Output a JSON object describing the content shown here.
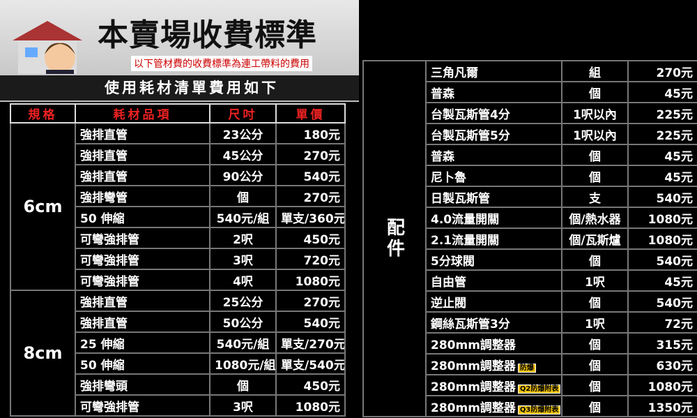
{
  "header": {
    "title": "本賣場收費標準",
    "subtitle": "以下管材費的收費標準為連工帶料的費用",
    "banner": "使用耗材清單費用如下"
  },
  "left": {
    "columns": [
      "規格",
      "耗材品項",
      "尺吋",
      "單價"
    ],
    "groups": [
      {
        "label": "6cm",
        "rows": [
          {
            "item": "強排直管",
            "size": "23公分",
            "price": "180元"
          },
          {
            "item": "強排直管",
            "size": "45公分",
            "price": "270元"
          },
          {
            "item": "強排直管",
            "size": "90公分",
            "price": "540元"
          },
          {
            "item": "強排彎管",
            "size": "個",
            "price": "270元"
          },
          {
            "item": "50 伸縮",
            "size": "540元/組",
            "price": "單支/360元"
          },
          {
            "item": "可彎強排管",
            "size": "2呎",
            "price": "450元"
          },
          {
            "item": "可彎強排管",
            "size": "3呎",
            "price": "720元"
          },
          {
            "item": "可彎強排管",
            "size": "4呎",
            "price": "1080元"
          }
        ]
      },
      {
        "label": "8cm",
        "rows": [
          {
            "item": "強排直管",
            "size": "25公分",
            "price": "270元"
          },
          {
            "item": "強排直管",
            "size": "50公分",
            "price": "540元"
          },
          {
            "item": "25 伸縮",
            "size": "540元/組",
            "price": "單支/270元"
          },
          {
            "item": "50 伸縮",
            "size": "1080元/組",
            "price": "單支/540元"
          },
          {
            "item": "強排彎頭",
            "size": "個",
            "price": "450元"
          },
          {
            "item": "可彎強排管",
            "size": "3呎",
            "price": "1080元"
          }
        ]
      }
    ]
  },
  "right": {
    "groups": [
      {
        "label": "配件",
        "rows": [
          {
            "item": "三角凡爾",
            "size": "組",
            "price": "270元"
          },
          {
            "item": "普森",
            "size": "個",
            "price": "45元"
          },
          {
            "item": "台製瓦斯管4分",
            "size": "1呎以內",
            "price": "225元"
          },
          {
            "item": "台製瓦斯管5分",
            "size": "1呎以內",
            "price": "225元"
          },
          {
            "item": "普森",
            "size": "個",
            "price": "45元"
          },
          {
            "item": "尼卜魯",
            "size": "個",
            "price": "45元"
          },
          {
            "item": "日製瓦斯管",
            "size": "支",
            "price": "540元"
          },
          {
            "item": "4.0流量開關",
            "size": "個/熱水器",
            "price": "1080元"
          },
          {
            "item": "2.1流量開關",
            "size": "個/瓦斯爐",
            "price": "1080元"
          },
          {
            "item": "5分球閥",
            "size": "個",
            "price": "540元"
          },
          {
            "item": "自由管",
            "size": "1呎",
            "price": "45元"
          },
          {
            "item": "逆止閥",
            "size": "個",
            "price": "540元"
          },
          {
            "item": "鋼絲瓦斯管3分",
            "size": "1呎",
            "price": "72元"
          },
          {
            "item": "280mm調整器",
            "size": "個",
            "price": "315元"
          },
          {
            "item": "280mm調整器",
            "tag": "防爆",
            "size": "個",
            "price": "630元"
          },
          {
            "item": "280mm調整器",
            "tag": "Q2防爆附表",
            "size": "個",
            "price": "1080元"
          },
          {
            "item": "280mm調整器",
            "tag": "Q3防爆附表",
            "size": "個",
            "price": "1350元"
          }
        ]
      }
    ]
  }
}
